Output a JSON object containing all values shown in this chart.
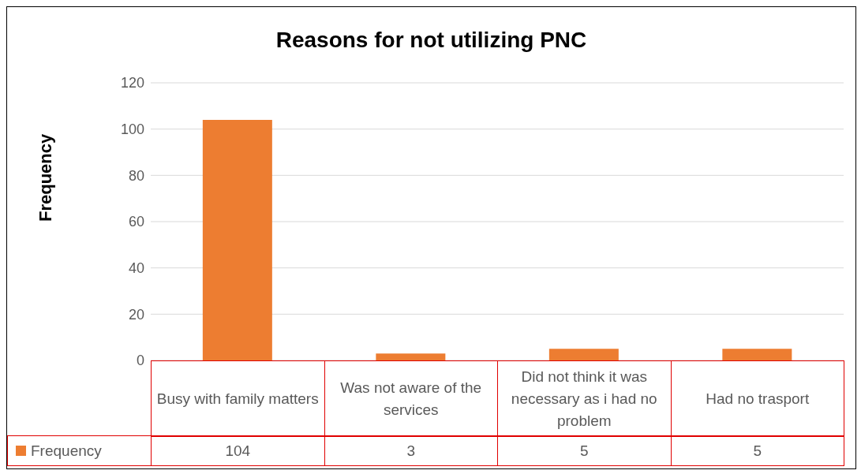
{
  "chart_data": {
    "type": "bar",
    "title": "Reasons for not utilizing PNC",
    "ylabel": "Frequency",
    "categories": [
      "Busy with family matters",
      "Was not aware of the services",
      "Did not think it was necessary as i had no problem",
      "Had no trasport"
    ],
    "series": [
      {
        "name": "Frequency",
        "color": "#ed7d31",
        "values": [
          104,
          3,
          5,
          5
        ]
      }
    ],
    "ylim": [
      0,
      120
    ],
    "yticks": [
      0,
      20,
      40,
      60,
      80,
      100,
      120
    ],
    "grid": "y",
    "legend": "bottom",
    "data_labels": true
  }
}
